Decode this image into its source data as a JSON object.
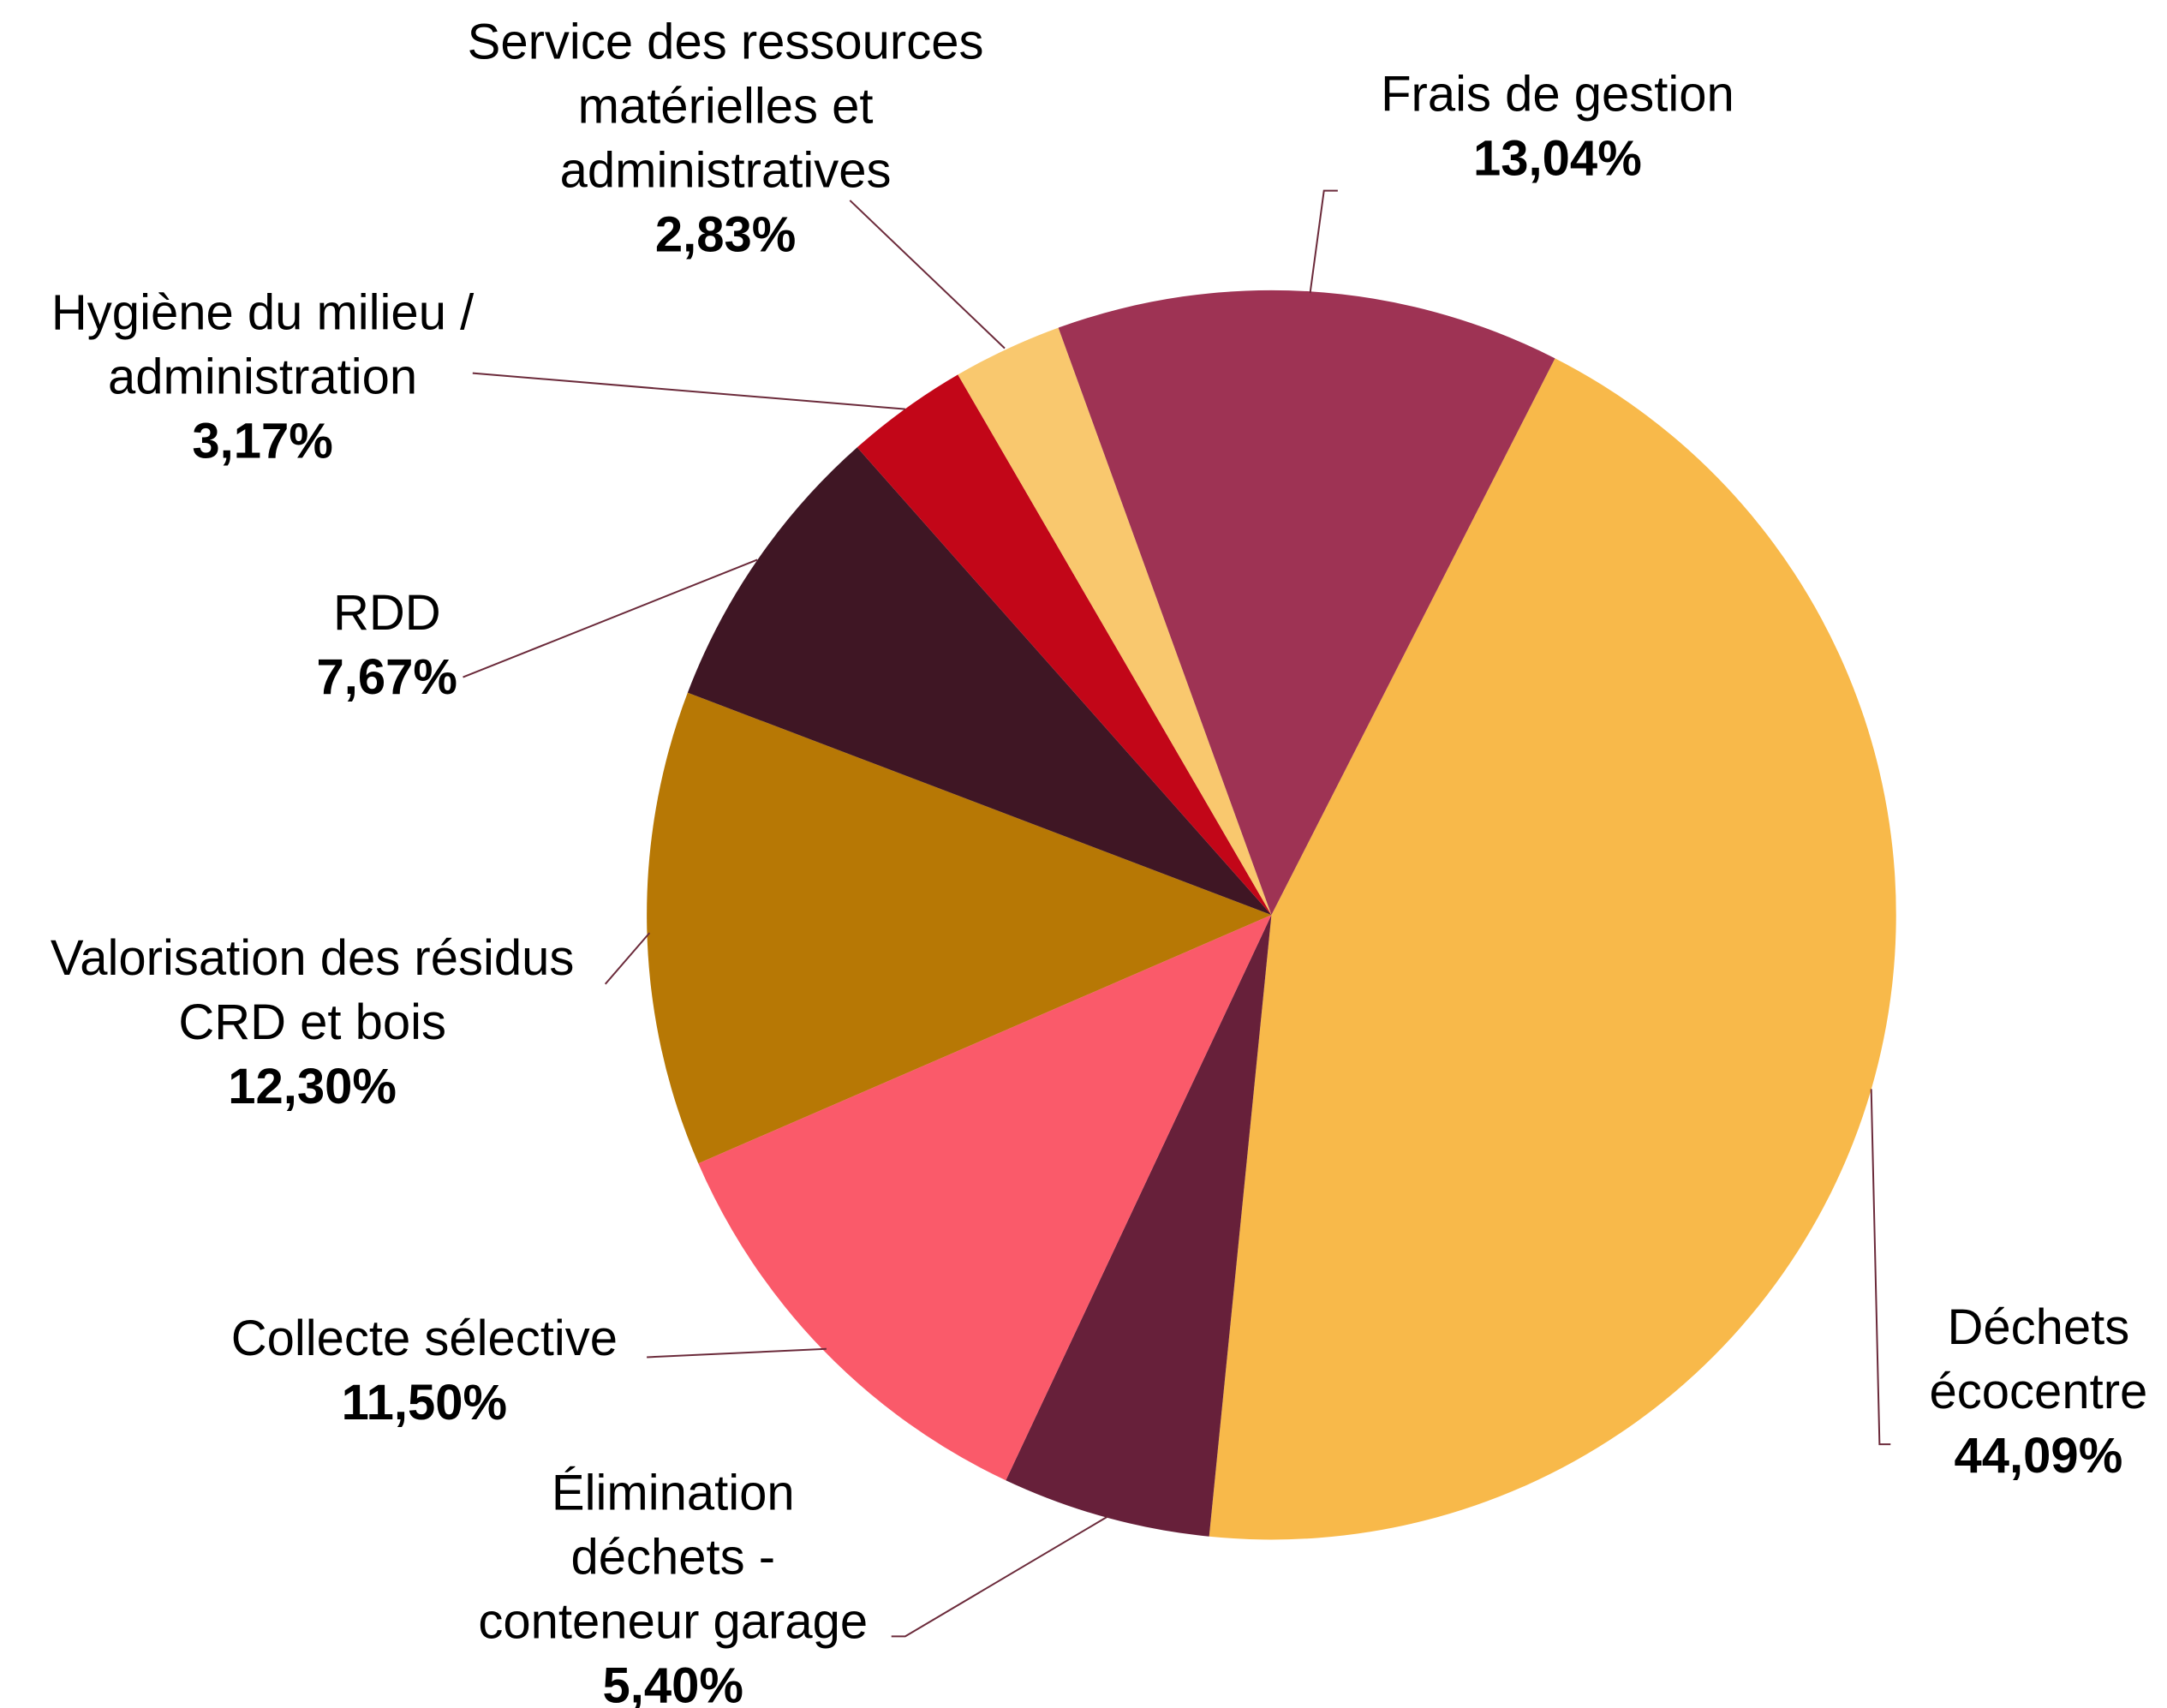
{
  "chart_data": {
    "type": "pie",
    "categories": [
      "Déchets\nécocentre",
      "Élimination\ndéchets -\nconteneur garage",
      "Collecte sélective",
      "Valorisation des résidus\nCRD et bois",
      "RDD",
      "Hygiène du milieu /\nadministration",
      "Service des ressources\nmatérielles et\nadministratives",
      "Frais de gestion"
    ],
    "values": [
      44.09,
      5.4,
      11.5,
      12.3,
      7.67,
      3.17,
      2.83,
      13.04
    ],
    "value_labels": [
      "44,09%",
      "5,40%",
      "11,50%",
      "12,30%",
      "7,67%",
      "3,17%",
      "2,83%",
      "13,04%"
    ],
    "colors": [
      "#F8B94A",
      "#67203A",
      "#FA5A6A",
      "#B77805",
      "#3F1624",
      "#C20618",
      "#F9C86E",
      "#9E3354"
    ]
  }
}
